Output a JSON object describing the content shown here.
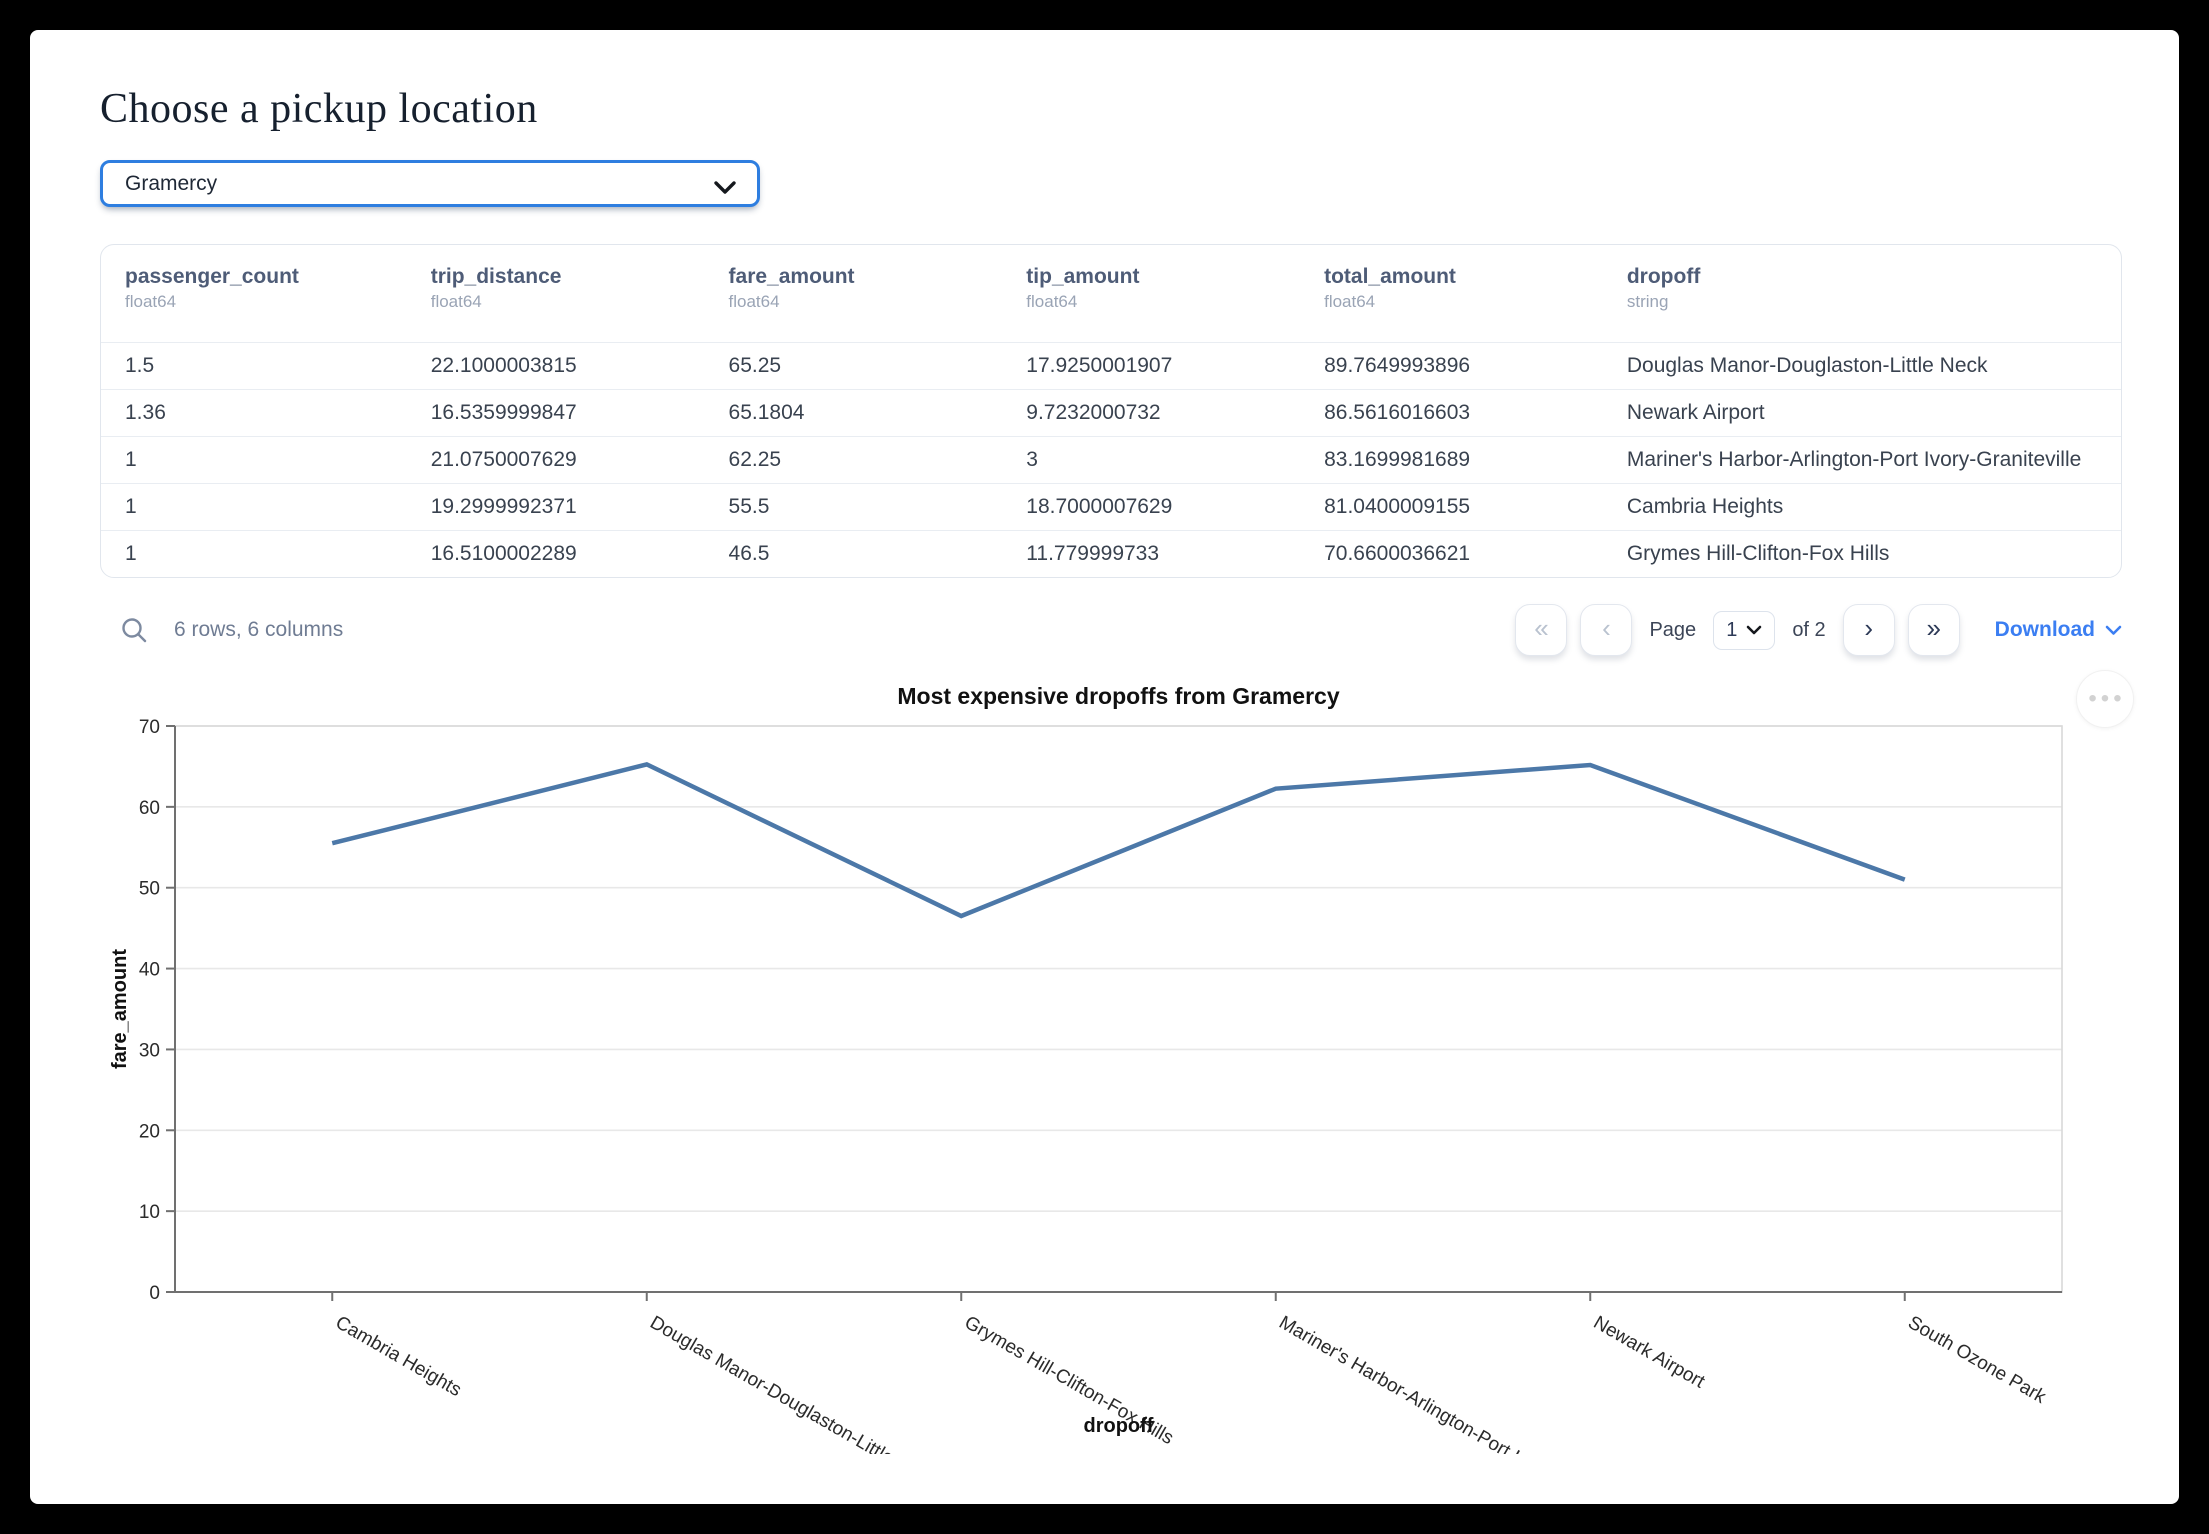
{
  "page": {
    "title": "Choose a pickup location"
  },
  "pickup_select": {
    "value": "Gramercy"
  },
  "colors": {
    "select_focus_blue": "#2e7ee0",
    "accent_blue": "#3b7ef2",
    "chart_line": "#4c78a8"
  },
  "icons": {
    "search": "magnifier",
    "select_chevron": "chevron-down",
    "download_chevron": "chevron-down",
    "chart_menu": "ellipsis"
  },
  "table": {
    "columns": [
      {
        "name": "passenger_count",
        "type": "float64"
      },
      {
        "name": "trip_distance",
        "type": "float64"
      },
      {
        "name": "fare_amount",
        "type": "float64"
      },
      {
        "name": "tip_amount",
        "type": "float64"
      },
      {
        "name": "total_amount",
        "type": "float64"
      },
      {
        "name": "dropoff",
        "type": "string"
      }
    ],
    "rows": [
      [
        "1.5",
        "22.1000003815",
        "65.25",
        "17.9250001907",
        "89.7649993896",
        "Douglas Manor-Douglaston-Little Neck"
      ],
      [
        "1.36",
        "16.5359999847",
        "65.1804",
        "9.7232000732",
        "86.5616016603",
        "Newark Airport"
      ],
      [
        "1",
        "21.0750007629",
        "62.25",
        "3",
        "83.1699981689",
        "Mariner's Harbor-Arlington-Port Ivory-Graniteville"
      ],
      [
        "1",
        "19.2999992371",
        "55.5",
        "18.7000007629",
        "81.0400009155",
        "Cambria Heights"
      ],
      [
        "1",
        "16.5100002289",
        "46.5",
        "11.779999733",
        "70.6600036621",
        "Grymes Hill-Clifton-Fox Hills"
      ]
    ],
    "footer": {
      "summary": "6 rows, 6 columns",
      "pagination": {
        "first": "«",
        "prev": "‹",
        "page_label": "Page",
        "page_value": "1",
        "of_label": "of 2",
        "next": "›",
        "last": "»"
      },
      "download_label": "Download"
    }
  },
  "chart_data": {
    "type": "line",
    "title": "Most expensive dropoffs from Gramercy",
    "xlabel": "dropoff",
    "ylabel": "fare_amount",
    "categories": [
      "Cambria Heights",
      "Douglas Manor-Douglaston-Little Neck",
      "Grymes Hill-Clifton-Fox Hills",
      "Mariner's Harbor-Arlington-Port Ivory-…",
      "Newark Airport",
      "South Ozone Park"
    ],
    "values": [
      55.5,
      65.25,
      46.5,
      62.25,
      65.1804,
      51
    ],
    "ylim": [
      0,
      70
    ],
    "ytick_step": 10,
    "grid": true,
    "legend": "none",
    "line_color": "#4c78a8"
  }
}
